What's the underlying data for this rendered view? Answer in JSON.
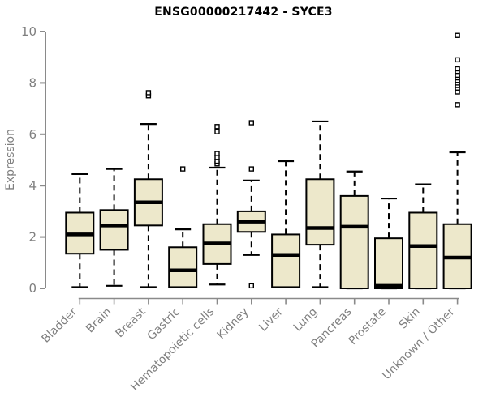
{
  "chart_data": {
    "type": "boxplot",
    "title": "ENSG00000217442 - SYCE3",
    "xlabel": "",
    "ylabel": "Expression",
    "ylim": [
      0,
      10
    ],
    "yticks": [
      0,
      2,
      4,
      6,
      8,
      10
    ],
    "grid": false,
    "legend": "none",
    "categories": [
      "Bladder",
      "Brain",
      "Breast",
      "Gastric",
      "Hematopoietic cells",
      "Kidney",
      "Liver",
      "Lung",
      "Pancreas",
      "Prostate",
      "Skin",
      "Unknown / Other"
    ],
    "series": [
      {
        "category": "Bladder",
        "whisker_low": 0.05,
        "q1": 1.35,
        "median": 2.1,
        "q3": 2.95,
        "whisker_high": 4.45,
        "outliers": []
      },
      {
        "category": "Brain",
        "whisker_low": 0.1,
        "q1": 1.5,
        "median": 2.45,
        "q3": 3.05,
        "whisker_high": 4.65,
        "outliers": []
      },
      {
        "category": "Breast",
        "whisker_low": 0.05,
        "q1": 2.45,
        "median": 3.35,
        "q3": 4.25,
        "whisker_high": 6.4,
        "outliers": [
          7.5,
          7.62
        ]
      },
      {
        "category": "Gastric",
        "whisker_low": 0.05,
        "q1": 0.05,
        "median": 0.7,
        "q3": 1.6,
        "whisker_high": 2.3,
        "outliers": [
          4.65
        ]
      },
      {
        "category": "Hematopoietic cells",
        "whisker_low": 0.15,
        "q1": 0.95,
        "median": 1.75,
        "q3": 2.5,
        "whisker_high": 4.7,
        "outliers": [
          4.85,
          4.95,
          5.1,
          5.25,
          6.1,
          6.3
        ]
      },
      {
        "category": "Kidney",
        "whisker_low": 1.3,
        "q1": 2.2,
        "median": 2.6,
        "q3": 3.0,
        "whisker_high": 4.2,
        "outliers": [
          0.1,
          4.65,
          6.45
        ]
      },
      {
        "category": "Liver",
        "whisker_low": 0.05,
        "q1": 0.05,
        "median": 1.3,
        "q3": 2.1,
        "whisker_high": 4.95,
        "outliers": []
      },
      {
        "category": "Lung",
        "whisker_low": 0.05,
        "q1": 1.7,
        "median": 2.35,
        "q3": 4.25,
        "whisker_high": 6.5,
        "outliers": []
      },
      {
        "category": "Pancreas",
        "whisker_low": 0.0,
        "q1": 0.0,
        "median": 2.4,
        "q3": 3.6,
        "whisker_high": 4.55,
        "outliers": []
      },
      {
        "category": "Prostate",
        "whisker_low": 0.0,
        "q1": 0.0,
        "median": 0.1,
        "q3": 1.95,
        "whisker_high": 3.5,
        "outliers": []
      },
      {
        "category": "Skin",
        "whisker_low": 0.0,
        "q1": 0.0,
        "median": 1.65,
        "q3": 2.95,
        "whisker_high": 4.05,
        "outliers": []
      },
      {
        "category": "Unknown / Other",
        "whisker_low": 0.0,
        "q1": 0.0,
        "median": 1.2,
        "q3": 2.5,
        "whisker_high": 5.3,
        "outliers": [
          7.15,
          7.65,
          7.8,
          7.9,
          8.0,
          8.1,
          8.2,
          8.3,
          8.45,
          8.55,
          8.9,
          9.85
        ]
      }
    ],
    "colors": {
      "box_fill": "#EDE8CB",
      "box_border": "#000000",
      "median": "#000000",
      "whisker": "#000000",
      "outlier_stroke": "#000000",
      "outlier_fill": "#ffffff",
      "axis": "#8a8a8a",
      "tick_label": "#7f7f7f",
      "title": "#000000",
      "background": "#ffffff"
    }
  }
}
